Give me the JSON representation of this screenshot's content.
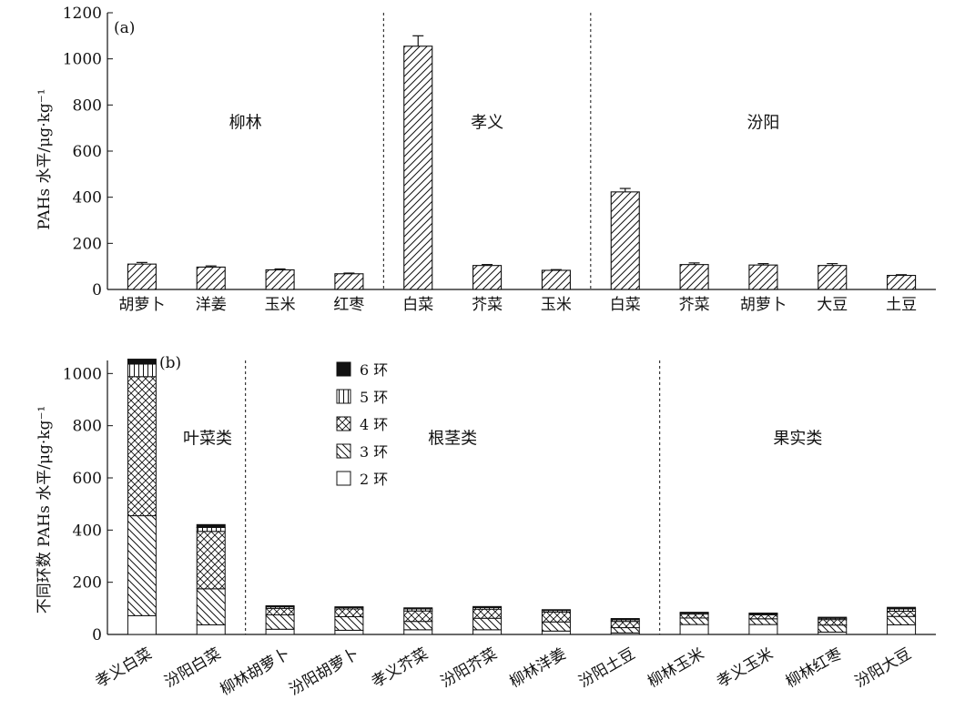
{
  "chart_data": [
    {
      "panel": "(a)",
      "type": "bar",
      "ylabel": "PAHs 水平/μg·kg⁻¹",
      "ylim": [
        0,
        1200
      ],
      "yticks": [
        "0",
        "200",
        "400",
        "600",
        "800",
        "1000",
        "1200"
      ],
      "groups": [
        {
          "name": "柳林",
          "categories": [
            "胡萝卜",
            "洋姜",
            "玉米",
            "红枣"
          ],
          "values": [
            110,
            97,
            85,
            68
          ],
          "errors": [
            7,
            5,
            4,
            3
          ]
        },
        {
          "name": "孝义",
          "categories": [
            "白菜",
            "芥菜",
            "玉米"
          ],
          "values": [
            1055,
            104,
            83
          ],
          "errors": [
            45,
            4,
            3
          ]
        },
        {
          "name": "汾阳",
          "categories": [
            "白菜",
            "芥菜",
            "胡萝卜",
            "大豆",
            "土豆"
          ],
          "values": [
            423,
            108,
            106,
            104,
            61
          ],
          "errors": [
            15,
            7,
            6,
            8,
            3
          ]
        }
      ]
    },
    {
      "panel": "(b)",
      "type": "stacked_bar",
      "ylabel": "不同环数 PAHs 水平/μg·kg⁻¹",
      "ylim": [
        0,
        1050
      ],
      "yticks": [
        "0",
        "200",
        "400",
        "600",
        "800",
        "1000"
      ],
      "series_names": [
        "2 环",
        "3 环",
        "4 环",
        "5 环",
        "6 环"
      ],
      "legend_order": [
        "6 环",
        "5 环",
        "4 环",
        "3 环",
        "2 环"
      ],
      "groups": [
        {
          "name": "叶菜类",
          "categories": [
            "孝义白菜",
            "汾阳白菜"
          ]
        },
        {
          "name": "根茎类",
          "categories": [
            "柳林胡萝卜",
            "汾阳胡萝卜",
            "孝义芥菜",
            "汾阳芥菜",
            "柳林洋姜",
            "汾阳土豆"
          ]
        },
        {
          "name": "果实类",
          "categories": [
            "柳林玉米",
            "孝义玉米",
            "柳林红枣",
            "汾阳大豆"
          ]
        }
      ],
      "categories": [
        "孝义白菜",
        "汾阳白菜",
        "柳林胡萝卜",
        "汾阳胡萝卜",
        "孝义芥菜",
        "汾阳芥菜",
        "柳林洋姜",
        "汾阳土豆",
        "柳林玉米",
        "孝义玉米",
        "柳林红枣",
        "汾阳大豆"
      ],
      "series": [
        {
          "name": "2 环",
          "values": [
            72,
            37,
            20,
            16,
            18,
            18,
            13,
            6,
            38,
            38,
            9,
            37
          ]
        },
        {
          "name": "3 环",
          "values": [
            383,
            138,
            55,
            52,
            32,
            44,
            35,
            20,
            25,
            22,
            27,
            32
          ]
        },
        {
          "name": "4 环",
          "values": [
            533,
            220,
            25,
            30,
            40,
            35,
            38,
            24,
            15,
            15,
            21,
            20
          ]
        },
        {
          "name": "5 环",
          "values": [
            48,
            15,
            6,
            5,
            8,
            6,
            6,
            6,
            4,
            4,
            5,
            9
          ]
        },
        {
          "name": "6 环",
          "values": [
            19,
            11,
            4,
            3,
            4,
            4,
            3,
            5,
            3,
            3,
            4,
            6
          ]
        }
      ]
    }
  ]
}
